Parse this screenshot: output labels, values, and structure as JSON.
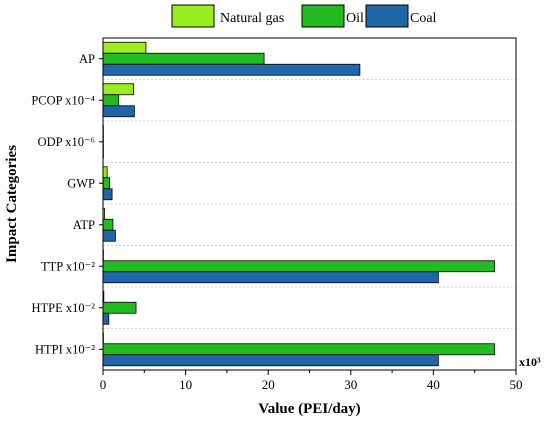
{
  "chart_data": {
    "type": "bar",
    "orientation": "horizontal",
    "title": "",
    "xlabel": "Value (PEI/day)",
    "ylabel": "Impact Categories",
    "x_multiplier_label": "x10³",
    "xlim": [
      0,
      50
    ],
    "xticks": [
      0,
      10,
      20,
      30,
      40,
      50
    ],
    "grid": "horizontal dotted separators",
    "legend_position": "top",
    "categories": [
      "AP",
      "PCOP x10⁻⁴",
      "ODP x10⁻⁶",
      "GWP",
      "ATP",
      "TTP x10⁻²",
      "HTPE x10⁻²",
      "HTPI x10⁻²"
    ],
    "series": [
      {
        "name": "Natural gas",
        "color": "#99ee22",
        "values": [
          5.2,
          3.7,
          0.05,
          0.5,
          0.2,
          0.05,
          0.1,
          0.05
        ]
      },
      {
        "name": "Oil",
        "color": "#22bb22",
        "values": [
          19.5,
          1.9,
          0.05,
          0.8,
          1.2,
          47.4,
          4.0,
          47.4
        ]
      },
      {
        "name": "Coal",
        "color": "#2266aa",
        "values": [
          31.1,
          3.8,
          0.05,
          1.1,
          1.5,
          40.6,
          0.7,
          40.6
        ]
      }
    ]
  }
}
